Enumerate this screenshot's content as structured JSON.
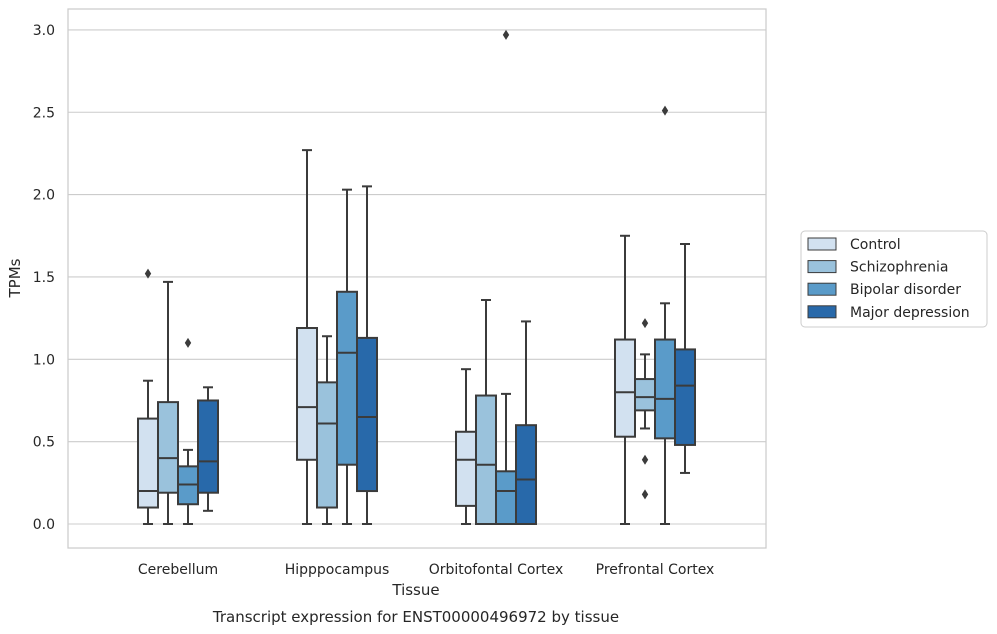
{
  "chart_data": {
    "type": "box",
    "caption": "Transcript expression for ENST00000496972 by tissue",
    "xlabel": "Tissue",
    "ylabel": "TPMs",
    "ylim": [
      -0.14,
      3.12
    ],
    "yticks": [
      "0.0",
      "0.5",
      "1.0",
      "1.5",
      "2.0",
      "2.5",
      "3.0"
    ],
    "grid": true,
    "legend_position": "right",
    "categories": [
      "Cerebellum",
      "Hipppocampus",
      "Orbitofontal Cortex",
      "Prefrontal Cortex"
    ],
    "series": [
      {
        "name": "Control",
        "color": "#d2e1f0",
        "boxes": [
          {
            "whislo": 0.0,
            "q1": 0.1,
            "med": 0.2,
            "q3": 0.64,
            "whishi": 0.87,
            "fliers": [
              1.52
            ]
          },
          {
            "whislo": 0.0,
            "q1": 0.39,
            "med": 0.71,
            "q3": 1.19,
            "whishi": 2.27,
            "fliers": []
          },
          {
            "whislo": 0.0,
            "q1": 0.11,
            "med": 0.39,
            "q3": 0.56,
            "whishi": 0.94,
            "fliers": []
          },
          {
            "whislo": 0.0,
            "q1": 0.53,
            "med": 0.8,
            "q3": 1.12,
            "whishi": 1.75,
            "fliers": []
          }
        ]
      },
      {
        "name": "Schizophrenia",
        "color": "#9ac2dc",
        "boxes": [
          {
            "whislo": 0.0,
            "q1": 0.19,
            "med": 0.4,
            "q3": 0.74,
            "whishi": 1.47,
            "fliers": []
          },
          {
            "whislo": 0.0,
            "q1": 0.1,
            "med": 0.61,
            "q3": 0.86,
            "whishi": 1.14,
            "fliers": []
          },
          {
            "whislo": 0.0,
            "q1": 0.0,
            "med": 0.36,
            "q3": 0.78,
            "whishi": 1.36,
            "fliers": []
          },
          {
            "whislo": 0.58,
            "q1": 0.69,
            "med": 0.77,
            "q3": 0.88,
            "whishi": 1.03,
            "fliers": [
              1.22,
              0.39,
              0.18
            ]
          }
        ]
      },
      {
        "name": "Bipolar disorder",
        "color": "#5a9bc9",
        "boxes": [
          {
            "whislo": 0.0,
            "q1": 0.12,
            "med": 0.24,
            "q3": 0.35,
            "whishi": 0.45,
            "fliers": [
              1.1
            ]
          },
          {
            "whislo": 0.0,
            "q1": 0.36,
            "med": 1.04,
            "q3": 1.41,
            "whishi": 2.03,
            "fliers": []
          },
          {
            "whislo": 0.0,
            "q1": 0.0,
            "med": 0.2,
            "q3": 0.32,
            "whishi": 0.79,
            "fliers": [
              2.97
            ]
          },
          {
            "whislo": 0.0,
            "q1": 0.52,
            "med": 0.76,
            "q3": 1.12,
            "whishi": 1.34,
            "fliers": [
              2.51
            ]
          }
        ]
      },
      {
        "name": "Major depression",
        "color": "#2869aa",
        "boxes": [
          {
            "whislo": 0.08,
            "q1": 0.19,
            "med": 0.38,
            "q3": 0.75,
            "whishi": 0.83,
            "fliers": []
          },
          {
            "whislo": 0.0,
            "q1": 0.2,
            "med": 0.65,
            "q3": 1.13,
            "whishi": 2.05,
            "fliers": []
          },
          {
            "whislo": 0.0,
            "q1": 0.0,
            "med": 0.27,
            "q3": 0.6,
            "whishi": 1.23,
            "fliers": []
          },
          {
            "whislo": 0.31,
            "q1": 0.48,
            "med": 0.84,
            "q3": 1.06,
            "whishi": 1.7,
            "fliers": []
          }
        ]
      }
    ]
  }
}
